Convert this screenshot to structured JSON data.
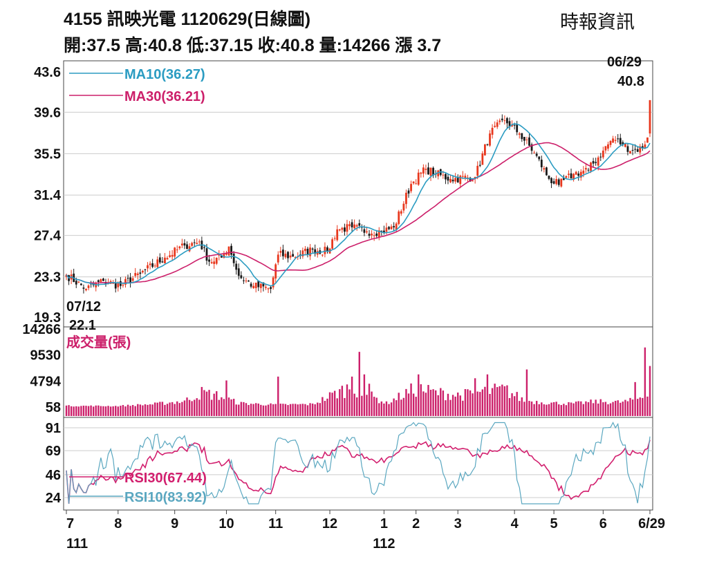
{
  "header": {
    "title": "4155  訊映光電 1120629(日線圖)",
    "source": "時報資訊",
    "ohlc": "開:37.5 高:40.8 低:37.15 收:40.8 量:14266 漲 3.7"
  },
  "colors": {
    "up": "#e8381e",
    "down": "#1a1a1a",
    "ma10": "#2b9cc2",
    "ma30": "#cc1f6a",
    "volume": "#cc1f6a",
    "rsi10": "#5aa7c0",
    "rsi30": "#d21f6e",
    "grid": "#cccccc"
  },
  "chart_data": {
    "type": "candlestick",
    "annotations": {
      "latest_date": "06/29",
      "latest_close": "40.8",
      "low_date": "07/12",
      "low_value": "22.1"
    },
    "price_panel": {
      "y_ticks": [
        "43.6",
        "39.6",
        "35.5",
        "31.4",
        "27.4",
        "23.3",
        "19.3"
      ],
      "ylim": [
        19.3,
        43.6
      ],
      "legend": [
        {
          "label": "MA10(36.27)",
          "color": "#2b9cc2"
        },
        {
          "label": "MA30(36.21)",
          "color": "#cc1f6a"
        }
      ]
    },
    "volume_panel": {
      "title": "成交量(張)",
      "y_ticks": [
        "14266",
        "9530",
        "4794",
        "58"
      ],
      "ylim": [
        58,
        14266
      ]
    },
    "rsi_panel": {
      "y_ticks": [
        "91",
        "69",
        "46",
        "24"
      ],
      "ylim": [
        24,
        91
      ],
      "legend": [
        {
          "label": "RSI30(67.44)",
          "color": "#d21f6e"
        },
        {
          "label": "RSI10(83.92)",
          "color": "#5aa7c0"
        }
      ]
    },
    "x_axis": {
      "month_ticks": [
        {
          "label": "7",
          "index": 0
        },
        {
          "label": "8",
          "index": 21
        },
        {
          "label": "9",
          "index": 44
        },
        {
          "label": "10",
          "index": 65
        },
        {
          "label": "11",
          "index": 85
        },
        {
          "label": "12",
          "index": 107
        },
        {
          "label": "1",
          "index": 129
        },
        {
          "label": "2",
          "index": 142
        },
        {
          "label": "3",
          "index": 159
        },
        {
          "label": "4",
          "index": 182
        },
        {
          "label": "5",
          "index": 198
        },
        {
          "label": "6",
          "index": 218
        },
        {
          "label": "6/29",
          "index": 237
        }
      ],
      "year_labels": [
        {
          "label": "111",
          "index": 0
        },
        {
          "label": "112",
          "index": 129
        }
      ]
    },
    "keypoints": [
      [
        0,
        23.5
      ],
      [
        8,
        22.1
      ],
      [
        15,
        22.9
      ],
      [
        22,
        22.4
      ],
      [
        30,
        23.6
      ],
      [
        40,
        25.2
      ],
      [
        48,
        26.4
      ],
      [
        54,
        26.8
      ],
      [
        58,
        24.8
      ],
      [
        63,
        25.2
      ],
      [
        66,
        26.3
      ],
      [
        70,
        23.4
      ],
      [
        76,
        22.4
      ],
      [
        83,
        22.1
      ],
      [
        86,
        25.5
      ],
      [
        92,
        25.3
      ],
      [
        100,
        26.0
      ],
      [
        106,
        25.8
      ],
      [
        110,
        28.0
      ],
      [
        116,
        28.2
      ],
      [
        122,
        27.8
      ],
      [
        128,
        27.8
      ],
      [
        133,
        28.2
      ],
      [
        140,
        32.5
      ],
      [
        146,
        34.0
      ],
      [
        150,
        33.5
      ],
      [
        156,
        33.0
      ],
      [
        166,
        33.2
      ],
      [
        172,
        37.5
      ],
      [
        178,
        38.8
      ],
      [
        184,
        37.5
      ],
      [
        190,
        35.6
      ],
      [
        196,
        33.0
      ],
      [
        200,
        32.4
      ],
      [
        206,
        33.5
      ],
      [
        212,
        33.9
      ],
      [
        218,
        35.8
      ],
      [
        222,
        37.0
      ],
      [
        226,
        36.4
      ],
      [
        230,
        35.8
      ],
      [
        234,
        36.1
      ],
      [
        236,
        37.1
      ],
      [
        237,
        40.8
      ]
    ],
    "volume_keypoints": [
      [
        0,
        300
      ],
      [
        20,
        250
      ],
      [
        35,
        600
      ],
      [
        48,
        1200
      ],
      [
        55,
        2800
      ],
      [
        62,
        2200
      ],
      [
        70,
        800
      ],
      [
        85,
        500
      ],
      [
        100,
        600
      ],
      [
        110,
        2800
      ],
      [
        116,
        4000
      ],
      [
        122,
        2500
      ],
      [
        130,
        800
      ],
      [
        142,
        3600
      ],
      [
        150,
        2800
      ],
      [
        160,
        2300
      ],
      [
        170,
        3000
      ],
      [
        178,
        3400
      ],
      [
        186,
        1300
      ],
      [
        195,
        900
      ],
      [
        205,
        700
      ],
      [
        215,
        1100
      ],
      [
        225,
        1000
      ],
      [
        230,
        1300
      ],
      [
        236,
        2500
      ],
      [
        237,
        14266
      ]
    ],
    "volume_spikes": [
      [
        65,
        4900
      ],
      [
        86,
        5600
      ],
      [
        116,
        5600
      ],
      [
        119,
        10100
      ],
      [
        121,
        6000
      ],
      [
        123,
        4300
      ],
      [
        143,
        6000
      ],
      [
        166,
        5300
      ],
      [
        171,
        6000
      ],
      [
        187,
        6900
      ],
      [
        231,
        4600
      ],
      [
        235,
        10900
      ]
    ]
  }
}
